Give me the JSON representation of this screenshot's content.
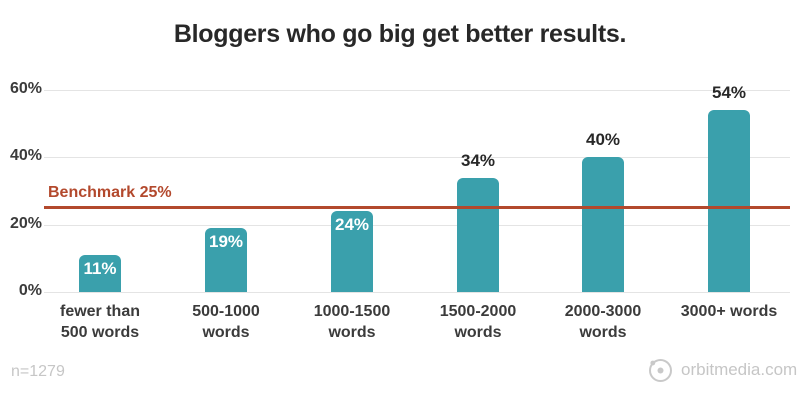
{
  "chart_data": {
    "type": "bar",
    "title": "Bloggers who go big get better results.",
    "categories": [
      "fewer than 500 words",
      "500-1000 words",
      "1000-1500 words",
      "1500-2000 words",
      "2000-3000 words",
      "3000+ words"
    ],
    "category_lines": [
      [
        "fewer than",
        "500 words"
      ],
      [
        "500-1000",
        "words"
      ],
      [
        "1000-1500",
        "words"
      ],
      [
        "1500-2000",
        "words"
      ],
      [
        "2000-3000",
        "words"
      ],
      [
        "3000+ words"
      ]
    ],
    "values": [
      11,
      19,
      24,
      34,
      40,
      54
    ],
    "value_labels": [
      "11%",
      "19%",
      "24%",
      "34%",
      "40%",
      "54%"
    ],
    "value_label_position": [
      "inside",
      "inside",
      "inside",
      "above",
      "above",
      "above"
    ],
    "xlabel": "",
    "ylabel": "",
    "ylim": [
      0,
      60
    ],
    "yticks": [
      0,
      20,
      40,
      60
    ],
    "ytick_labels": [
      "0%",
      "20%",
      "40%",
      "60%"
    ],
    "grid": true,
    "legend": false,
    "benchmark": {
      "value": 25,
      "label": "Benchmark 25%"
    },
    "colors": {
      "bar": "#3AA0AC",
      "benchmark": "#B3492D",
      "grid": "#E4E4E4",
      "title": "#282828",
      "axis_text": "#3B3B3B",
      "value_above": "#282828",
      "value_inside": "#FFFFFF",
      "footer_text": "#C6C6C6"
    }
  },
  "footer": {
    "sample_note": "n=1279",
    "attribution": "orbitmedia.com"
  }
}
